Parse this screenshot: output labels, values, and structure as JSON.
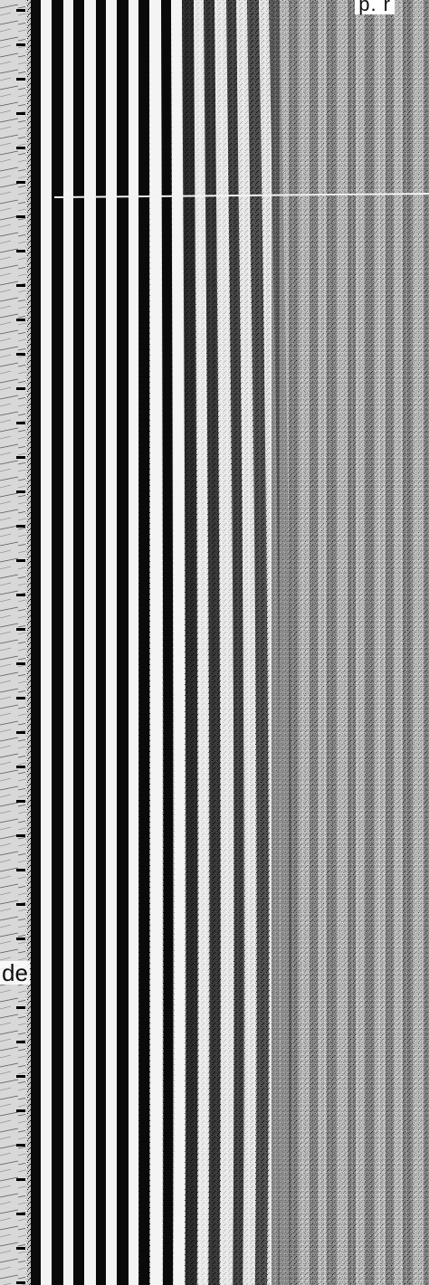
{
  "figure": {
    "top_label": "p. r",
    "side_label": "de",
    "colors": {
      "ink": "#0a0a0a",
      "paper": "#f4f4f4",
      "mid_gray": "#9a9a9a",
      "light_gray": "#cfcfcf"
    }
  }
}
